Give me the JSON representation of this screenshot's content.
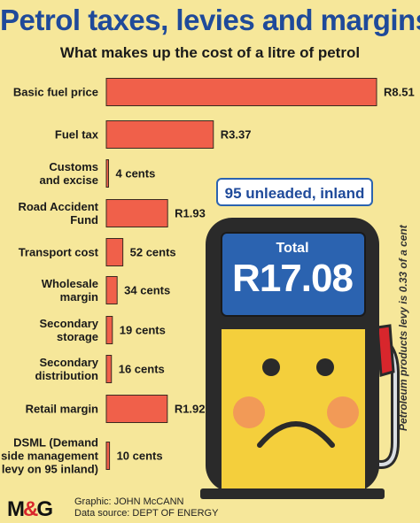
{
  "header": {
    "title": "Petrol taxes, levies and margins",
    "subtitle": "What makes up the cost of a litre of petrol"
  },
  "badge": "95 unleaded, inland",
  "total": {
    "label": "Total",
    "value": "R17.08"
  },
  "side_note": "Petroleum products levy is 0.33 of a cent",
  "footer": {
    "logo": "M&G",
    "graphic_credit": "Graphic: JOHN McCANN",
    "data_source": "Data source: DEPT OF ENERGY"
  },
  "colors": {
    "bar": "#f0604a",
    "bar_outline": "#3a2a20",
    "title": "#1f4a9a",
    "background": "#f6e79a",
    "pump_body": "#2a2a2a",
    "screen": "#2b63b0",
    "face": "#f4cf3c"
  },
  "chart_data": {
    "type": "bar",
    "orientation": "horizontal",
    "categories": [
      "Basic fuel price",
      "Fuel tax",
      "Customs and excise",
      "Road Accident Fund",
      "Transport cost",
      "Wholesale margin",
      "Secondary storage",
      "Secondary distribution",
      "Retail margin",
      "DSML (Demand side management levy on 95 inland)"
    ],
    "category_lines": [
      [
        "Basic fuel price"
      ],
      [
        "Fuel tax"
      ],
      [
        "Customs",
        "and excise"
      ],
      [
        "Road Accident",
        "Fund"
      ],
      [
        "Transport cost"
      ],
      [
        "Wholesale",
        "margin"
      ],
      [
        "Secondary",
        "storage"
      ],
      [
        "Secondary",
        "distribution"
      ],
      [
        "Retail margin"
      ],
      [
        "DSML (Demand",
        "side management",
        "levy on 95 inland)"
      ]
    ],
    "values": [
      8.51,
      3.37,
      0.04,
      1.93,
      0.52,
      0.34,
      0.19,
      0.16,
      1.92,
      0.1
    ],
    "value_labels": [
      "R8.51",
      "R3.37",
      "4 cents",
      "R1.93",
      "52 cents",
      "34 cents",
      "19 cents",
      "16 cents",
      "R1.92",
      "10 cents"
    ],
    "unit": "Rand",
    "xlim": [
      0,
      8.51
    ],
    "grid": false,
    "legend": "none"
  }
}
